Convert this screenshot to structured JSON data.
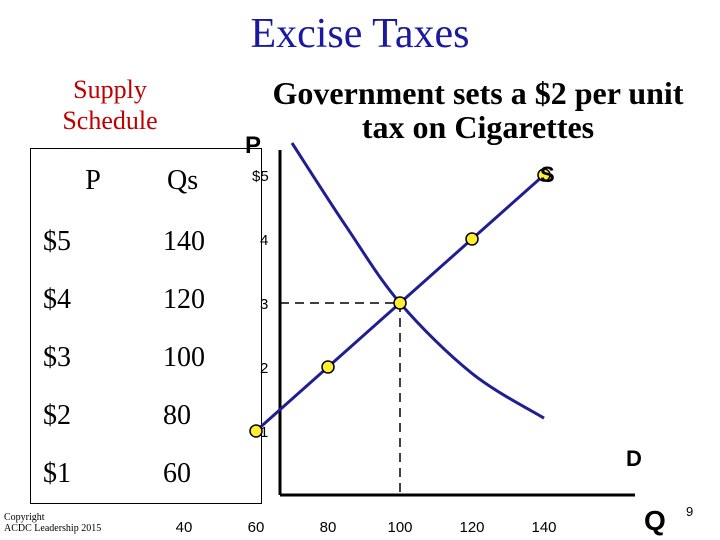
{
  "slide": {
    "title": "Excise Taxes",
    "supply_heading": "Supply\nSchedule",
    "government_note": "Government sets a $2 per unit tax on Cigarettes",
    "copyright": "Copyright\nACDC Leadership 2015",
    "page_number": "9"
  },
  "schedule": {
    "headers": [
      "P",
      "Qs"
    ],
    "rows": [
      {
        "p": "$5",
        "qs": "140"
      },
      {
        "p": "$4",
        "qs": "120"
      },
      {
        "p": "$3",
        "qs": "100"
      },
      {
        "p": "$2",
        "qs": "80"
      },
      {
        "p": "$1",
        "qs": "60"
      }
    ]
  },
  "colors": {
    "title": "#1a1aa0",
    "supply_heading": "#c00000",
    "curve": "#1f1f8f",
    "point_fill": "#ffee33"
  },
  "chart_data": {
    "type": "line",
    "xlabel": "Q",
    "ylabel": "P",
    "xlim": [
      0,
      150
    ],
    "ylim": [
      0,
      5.5
    ],
    "x_ticks": [
      "40",
      "60",
      "80",
      "100",
      "120",
      "140"
    ],
    "x_tick_values": [
      40,
      60,
      80,
      100,
      120,
      140
    ],
    "y_ticks": [
      "$5",
      "4",
      "3",
      "2",
      "1"
    ],
    "y_tick_values": [
      5,
      4,
      3,
      2,
      1
    ],
    "grid": false,
    "series": [
      {
        "name": "S",
        "values": [
          {
            "x": 60,
            "y": 1
          },
          {
            "x": 80,
            "y": 2
          },
          {
            "x": 100,
            "y": 3
          },
          {
            "x": 120,
            "y": 4
          },
          {
            "x": 140,
            "y": 5
          }
        ],
        "markers": true
      },
      {
        "name": "D",
        "values": [
          {
            "x": 70,
            "y": 5.5
          },
          {
            "x": 85,
            "y": 4.2
          },
          {
            "x": 100,
            "y": 3
          },
          {
            "x": 120,
            "y": 1.9
          },
          {
            "x": 140,
            "y": 1.2
          }
        ],
        "markers": false
      }
    ],
    "equilibrium": {
      "x": 100,
      "y": 3
    }
  }
}
